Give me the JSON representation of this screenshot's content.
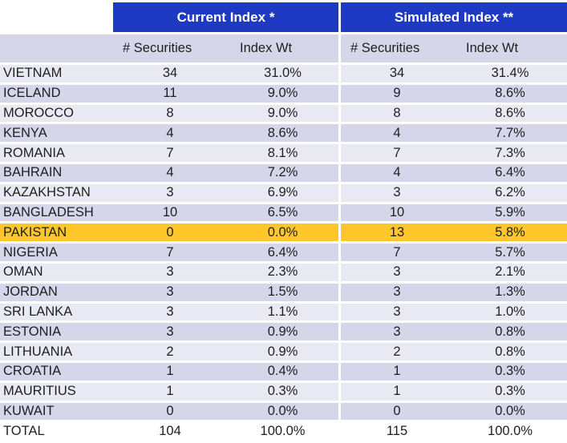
{
  "header": {
    "current_group": "Current Index *",
    "simulated_group": "Simulated Index **",
    "columns": {
      "current_securities": "# Securities",
      "current_weight": "Index Wt",
      "simulated_securities": "# Securities",
      "simulated_weight": "Index Wt"
    }
  },
  "rows": [
    {
      "country": "VIETNAM",
      "cur_sec": "34",
      "cur_wt": "31.0%",
      "sim_sec": "34",
      "sim_wt": "31.4%"
    },
    {
      "country": "ICELAND",
      "cur_sec": "11",
      "cur_wt": "9.0%",
      "sim_sec": "9",
      "sim_wt": "8.6%"
    },
    {
      "country": "MOROCCO",
      "cur_sec": "8",
      "cur_wt": "9.0%",
      "sim_sec": "8",
      "sim_wt": "8.6%"
    },
    {
      "country": "KENYA",
      "cur_sec": "4",
      "cur_wt": "8.6%",
      "sim_sec": "4",
      "sim_wt": "7.7%"
    },
    {
      "country": "ROMANIA",
      "cur_sec": "7",
      "cur_wt": "8.1%",
      "sim_sec": "7",
      "sim_wt": "7.3%"
    },
    {
      "country": "BAHRAIN",
      "cur_sec": "4",
      "cur_wt": "7.2%",
      "sim_sec": "4",
      "sim_wt": "6.4%"
    },
    {
      "country": "KAZAKHSTAN",
      "cur_sec": "3",
      "cur_wt": "6.9%",
      "sim_sec": "3",
      "sim_wt": "6.2%"
    },
    {
      "country": "BANGLADESH",
      "cur_sec": "10",
      "cur_wt": "6.5%",
      "sim_sec": "10",
      "sim_wt": "5.9%"
    },
    {
      "country": "PAKISTAN",
      "cur_sec": "0",
      "cur_wt": "0.0%",
      "sim_sec": "13",
      "sim_wt": "5.8%",
      "highlight": true
    },
    {
      "country": "NIGERIA",
      "cur_sec": "7",
      "cur_wt": "6.4%",
      "sim_sec": "7",
      "sim_wt": "5.7%"
    },
    {
      "country": "OMAN",
      "cur_sec": "3",
      "cur_wt": "2.3%",
      "sim_sec": "3",
      "sim_wt": "2.1%"
    },
    {
      "country": "JORDAN",
      "cur_sec": "3",
      "cur_wt": "1.5%",
      "sim_sec": "3",
      "sim_wt": "1.3%"
    },
    {
      "country": "SRI LANKA",
      "cur_sec": "3",
      "cur_wt": "1.1%",
      "sim_sec": "3",
      "sim_wt": "1.0%"
    },
    {
      "country": "ESTONIA",
      "cur_sec": "3",
      "cur_wt": "0.9%",
      "sim_sec": "3",
      "sim_wt": "0.8%"
    },
    {
      "country": "LITHUANIA",
      "cur_sec": "2",
      "cur_wt": "0.9%",
      "sim_sec": "2",
      "sim_wt": "0.8%"
    },
    {
      "country": "CROATIA",
      "cur_sec": "1",
      "cur_wt": "0.4%",
      "sim_sec": "1",
      "sim_wt": "0.3%"
    },
    {
      "country": "MAURITIUS",
      "cur_sec": "1",
      "cur_wt": "0.3%",
      "sim_sec": "1",
      "sim_wt": "0.3%"
    },
    {
      "country": "KUWAIT",
      "cur_sec": "0",
      "cur_wt": "0.0%",
      "sim_sec": "0",
      "sim_wt": "0.0%"
    }
  ],
  "total": {
    "country": "TOTAL",
    "cur_sec": "104",
    "cur_wt": "100.0%",
    "sim_sec": "115",
    "sim_wt": "100.0%"
  },
  "colors": {
    "header_blue": "#1f3ac2",
    "row_dark": "#d5d6e9",
    "row_light": "#e9e9f3",
    "highlight": "#ffc72a"
  }
}
